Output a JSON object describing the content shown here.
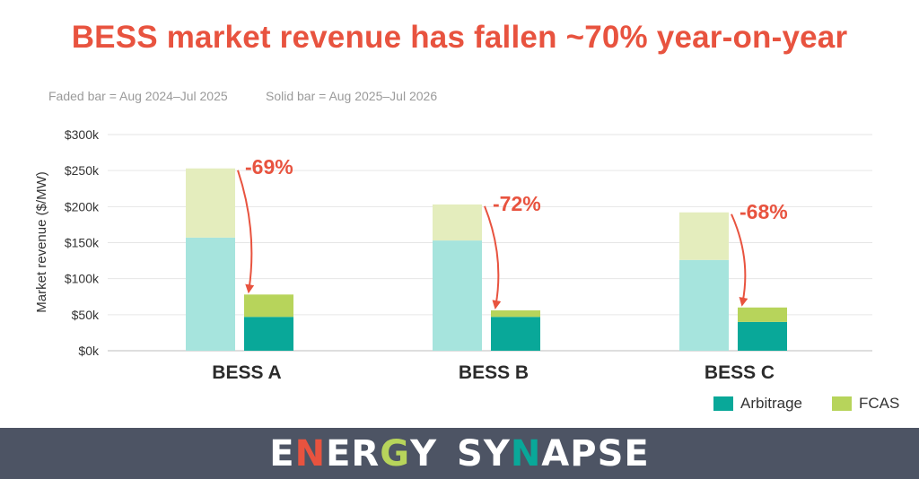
{
  "title": "BESS market revenue has fallen ~70% year-on-year",
  "subtitles": [
    "Faded bar = Aug 2024–Jul 2025",
    "Solid bar = Aug 2025–Jul 2026"
  ],
  "colors": {
    "title": "#e8533f",
    "arbitrage_solid": "#09a899",
    "arbitrage_faded": "#a6e4dd",
    "fcas_solid": "#b7d45b",
    "fcas_faded": "#e4edbd",
    "annotation": "#e8533f",
    "footer_bg": "#4d5464"
  },
  "chart_data": {
    "type": "bar",
    "stacked": true,
    "categories": [
      "BESS A",
      "BESS B",
      "BESS C"
    ],
    "periods": [
      "Aug 2024–Jul 2025",
      "Aug 2025–Jul 2026"
    ],
    "series": [
      {
        "name": "Arbitrage",
        "faded": [
          157,
          153,
          126
        ],
        "solid": [
          47,
          47,
          40
        ]
      },
      {
        "name": "FCAS",
        "faded": [
          96,
          50,
          66
        ],
        "solid": [
          31,
          9,
          20
        ]
      }
    ],
    "annotations": [
      "-69%",
      "-72%",
      "-68%"
    ],
    "ylabel": "Market revenue ($/MW)",
    "ylim": [
      0,
      300
    ],
    "yticks": [
      "$0k",
      "$50k",
      "$100k",
      "$150k",
      "$200k",
      "$250k",
      "$300k"
    ],
    "grid": true,
    "legend_position": "bottom-right"
  },
  "legend": [
    {
      "label": "Arbitrage",
      "color": "#09a899"
    },
    {
      "label": "FCAS",
      "color": "#b7d45b"
    }
  ],
  "footer": {
    "brand_letters": [
      "E",
      "N",
      "E",
      "R",
      "G",
      "Y",
      " ",
      "S",
      "Y",
      "N",
      "A",
      "P",
      "S",
      "E"
    ],
    "brand_colors": [
      "#ffffff",
      "#e8533f",
      "#ffffff",
      "#ffffff",
      "#b7d45b",
      "#ffffff",
      "",
      "#ffffff",
      "#ffffff",
      "#09a899",
      "#ffffff",
      "#ffffff",
      "#ffffff",
      "#ffffff"
    ]
  }
}
